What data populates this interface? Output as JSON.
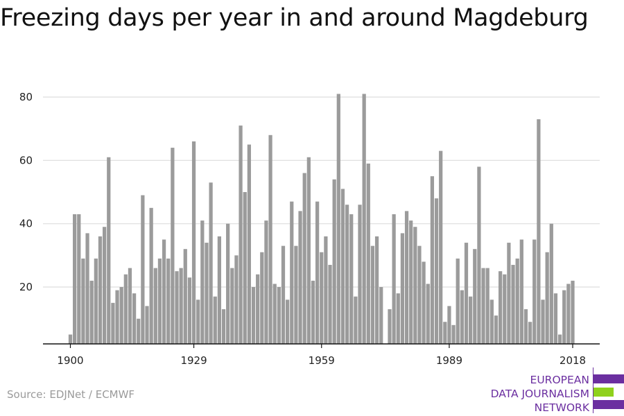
{
  "title": "Freezing days per year in and around Magdeburg",
  "source": "Source: EDJNet / ECMWF",
  "logo": {
    "lines": [
      "EUROPEAN",
      "DATA JOURNALISM",
      "NETWORK"
    ],
    "colors": {
      "purple": "#6b2fa0",
      "green": "#8fd11c"
    }
  },
  "colors": {
    "bar": "#9b9b9b",
    "grid": "#dddddd",
    "axis": "#111111"
  },
  "chart_data": {
    "type": "bar",
    "title": "Freezing days per year in and around Magdeburg",
    "xlabel": "",
    "ylabel": "",
    "x_ticks": [
      1900,
      1929,
      1959,
      1989,
      2018
    ],
    "y_ticks": [
      20,
      40,
      60,
      80
    ],
    "ylim": [
      2,
      84
    ],
    "xlim": [
      1900,
      2018
    ],
    "grid": "horizontal",
    "categories": [
      1900,
      1901,
      1902,
      1903,
      1904,
      1905,
      1906,
      1907,
      1908,
      1909,
      1910,
      1911,
      1912,
      1913,
      1914,
      1915,
      1916,
      1917,
      1918,
      1919,
      1920,
      1921,
      1922,
      1923,
      1924,
      1925,
      1926,
      1927,
      1928,
      1929,
      1930,
      1931,
      1932,
      1933,
      1934,
      1935,
      1936,
      1937,
      1938,
      1939,
      1940,
      1941,
      1942,
      1943,
      1944,
      1945,
      1946,
      1947,
      1948,
      1949,
      1950,
      1951,
      1952,
      1953,
      1954,
      1955,
      1956,
      1957,
      1958,
      1959,
      1960,
      1961,
      1962,
      1963,
      1964,
      1965,
      1966,
      1967,
      1968,
      1969,
      1970,
      1971,
      1972,
      1973,
      1974,
      1975,
      1976,
      1977,
      1978,
      1979,
      1980,
      1981,
      1982,
      1983,
      1984,
      1985,
      1986,
      1987,
      1988,
      1989,
      1990,
      1991,
      1992,
      1993,
      1994,
      1995,
      1996,
      1997,
      1998,
      1999,
      2000,
      2001,
      2002,
      2003,
      2004,
      2005,
      2006,
      2007,
      2008,
      2009,
      2010,
      2011,
      2012,
      2013,
      2014,
      2015,
      2016,
      2017,
      2018
    ],
    "values": [
      5,
      43,
      43,
      29,
      37,
      22,
      29,
      36,
      39,
      61,
      15,
      19,
      20,
      24,
      26,
      18,
      10,
      49,
      14,
      45,
      26,
      29,
      35,
      29,
      64,
      25,
      26,
      32,
      23,
      66,
      16,
      41,
      34,
      53,
      17,
      36,
      13,
      40,
      26,
      30,
      71,
      50,
      65,
      20,
      24,
      31,
      41,
      68,
      21,
      20,
      33,
      16,
      47,
      33,
      44,
      56,
      61,
      22,
      47,
      31,
      36,
      27,
      54,
      81,
      51,
      46,
      43,
      17,
      46,
      81,
      59,
      33,
      36,
      20,
      0,
      13,
      43,
      18,
      37,
      44,
      41,
      39,
      33,
      28,
      21,
      55,
      48,
      63,
      9,
      14,
      8,
      29,
      19,
      34,
      17,
      32,
      58,
      26,
      26,
      16,
      11,
      25,
      24,
      34,
      27,
      29,
      35,
      13,
      9,
      35,
      73,
      16,
      31,
      40,
      18,
      5,
      19,
      21,
      22
    ]
  }
}
